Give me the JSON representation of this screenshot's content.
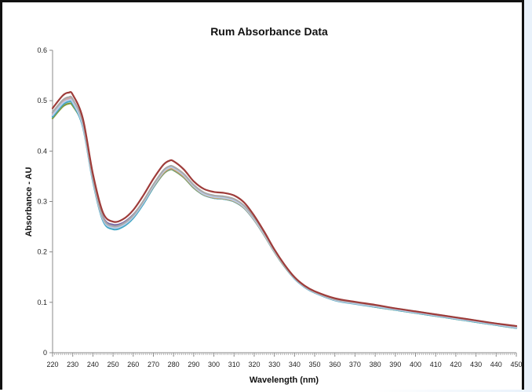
{
  "chart_data": {
    "type": "line",
    "title": "Rum Absorbance Data",
    "xlabel": "Wavelength (nm)",
    "ylabel": "Absorbance - AU",
    "xlim": [
      220,
      450
    ],
    "ylim": [
      0,
      0.6
    ],
    "x_ticks": [
      220,
      230,
      240,
      250,
      260,
      270,
      280,
      290,
      300,
      310,
      320,
      330,
      340,
      350,
      360,
      370,
      380,
      390,
      400,
      410,
      420,
      430,
      440,
      450
    ],
    "x_tick_labels": [
      "220",
      "230",
      "240",
      "250",
      "260",
      "270",
      "280",
      "290",
      "300",
      "310",
      "320",
      "330",
      "340",
      "350",
      "360",
      "370",
      "380",
      "390",
      "400",
      "410",
      "420",
      "430",
      "440",
      "450"
    ],
    "y_ticks": [
      0,
      0.1,
      0.2,
      0.3,
      0.4,
      0.5,
      0.6
    ],
    "y_tick_labels": [
      "0",
      "0.1",
      "0.2",
      "0.3",
      "0.4",
      "0.5",
      "0.6"
    ],
    "grid": false,
    "legend": "none",
    "x": [
      220,
      225,
      228,
      230,
      235,
      240,
      245,
      250,
      255,
      260,
      265,
      270,
      275,
      278,
      280,
      285,
      290,
      295,
      300,
      305,
      310,
      315,
      320,
      325,
      330,
      335,
      340,
      345,
      350,
      360,
      370,
      380,
      390,
      400,
      410,
      420,
      430,
      440,
      450
    ],
    "series": [
      {
        "color": "#9e3c3a",
        "values": [
          0.485,
          0.51,
          0.516,
          0.512,
          0.465,
          0.355,
          0.278,
          0.26,
          0.265,
          0.283,
          0.312,
          0.345,
          0.373,
          0.381,
          0.38,
          0.364,
          0.34,
          0.325,
          0.319,
          0.317,
          0.312,
          0.298,
          0.272,
          0.24,
          0.205,
          0.175,
          0.15,
          0.133,
          0.122,
          0.108,
          0.101,
          0.095,
          0.088,
          0.082,
          0.076,
          0.07,
          0.064,
          0.058,
          0.053
        ]
      },
      {
        "color": "#7f9a3f",
        "values": [
          0.465,
          0.488,
          0.494,
          0.49,
          0.45,
          0.345,
          0.268,
          0.252,
          0.256,
          0.27,
          0.296,
          0.328,
          0.355,
          0.363,
          0.362,
          0.348,
          0.327,
          0.313,
          0.307,
          0.305,
          0.3,
          0.287,
          0.264,
          0.234,
          0.201,
          0.172,
          0.148,
          0.131,
          0.12,
          0.105,
          0.098,
          0.091,
          0.085,
          0.079,
          0.073,
          0.067,
          0.061,
          0.055,
          0.049
        ]
      },
      {
        "color": "#7a6aa8",
        "values": [
          0.47,
          0.494,
          0.5,
          0.497,
          0.455,
          0.348,
          0.27,
          0.254,
          0.258,
          0.274,
          0.3,
          0.332,
          0.359,
          0.367,
          0.366,
          0.352,
          0.33,
          0.316,
          0.31,
          0.308,
          0.303,
          0.29,
          0.266,
          0.236,
          0.202,
          0.173,
          0.148,
          0.131,
          0.12,
          0.106,
          0.099,
          0.093,
          0.087,
          0.081,
          0.075,
          0.069,
          0.063,
          0.057,
          0.051
        ]
      },
      {
        "color": "#3fa6c4",
        "values": [
          0.468,
          0.492,
          0.498,
          0.494,
          0.448,
          0.34,
          0.262,
          0.245,
          0.25,
          0.267,
          0.295,
          0.328,
          0.356,
          0.364,
          0.363,
          0.349,
          0.328,
          0.313,
          0.307,
          0.305,
          0.3,
          0.287,
          0.263,
          0.233,
          0.2,
          0.171,
          0.147,
          0.13,
          0.119,
          0.104,
          0.097,
          0.091,
          0.085,
          0.079,
          0.073,
          0.067,
          0.061,
          0.055,
          0.049
        ]
      },
      {
        "color": "#e79a4a",
        "values": [
          0.472,
          0.496,
          0.502,
          0.498,
          0.452,
          0.344,
          0.266,
          0.249,
          0.254,
          0.27,
          0.298,
          0.33,
          0.357,
          0.365,
          0.364,
          0.35,
          0.329,
          0.314,
          0.308,
          0.306,
          0.301,
          0.288,
          0.264,
          0.234,
          0.201,
          0.172,
          0.148,
          0.131,
          0.12,
          0.105,
          0.098,
          0.092,
          0.086,
          0.08,
          0.074,
          0.068,
          0.062,
          0.056,
          0.05
        ]
      },
      {
        "color": "#98b5de",
        "values": [
          0.476,
          0.5,
          0.506,
          0.502,
          0.456,
          0.346,
          0.267,
          0.25,
          0.255,
          0.272,
          0.3,
          0.333,
          0.361,
          0.369,
          0.368,
          0.354,
          0.332,
          0.317,
          0.311,
          0.309,
          0.304,
          0.291,
          0.267,
          0.237,
          0.203,
          0.174,
          0.149,
          0.132,
          0.121,
          0.106,
          0.099,
          0.093,
          0.087,
          0.081,
          0.075,
          0.069,
          0.063,
          0.057,
          0.052
        ]
      },
      {
        "color": "#d9a3a2",
        "values": [
          0.474,
          0.498,
          0.504,
          0.5,
          0.454,
          0.345,
          0.266,
          0.249,
          0.254,
          0.271,
          0.299,
          0.332,
          0.36,
          0.368,
          0.367,
          0.353,
          0.331,
          0.316,
          0.31,
          0.308,
          0.303,
          0.29,
          0.266,
          0.236,
          0.202,
          0.173,
          0.148,
          0.131,
          0.12,
          0.105,
          0.099,
          0.093,
          0.087,
          0.081,
          0.075,
          0.069,
          0.063,
          0.057,
          0.051
        ]
      },
      {
        "color": "#b9cdea",
        "values": [
          0.471,
          0.495,
          0.501,
          0.497,
          0.451,
          0.343,
          0.265,
          0.248,
          0.253,
          0.27,
          0.298,
          0.331,
          0.359,
          0.367,
          0.366,
          0.352,
          0.33,
          0.315,
          0.309,
          0.307,
          0.302,
          0.289,
          0.265,
          0.235,
          0.202,
          0.173,
          0.148,
          0.131,
          0.12,
          0.105,
          0.098,
          0.092,
          0.086,
          0.08,
          0.074,
          0.068,
          0.062,
          0.056,
          0.05
        ]
      },
      {
        "color": "#aaaaaa",
        "values": [
          0.477,
          0.501,
          0.507,
          0.503,
          0.457,
          0.347,
          0.268,
          0.251,
          0.256,
          0.273,
          0.301,
          0.334,
          0.362,
          0.37,
          0.369,
          0.355,
          0.333,
          0.318,
          0.312,
          0.31,
          0.305,
          0.292,
          0.268,
          0.238,
          0.204,
          0.174,
          0.149,
          0.132,
          0.121,
          0.106,
          0.1,
          0.094,
          0.088,
          0.082,
          0.076,
          0.07,
          0.064,
          0.058,
          0.052
        ]
      }
    ]
  }
}
